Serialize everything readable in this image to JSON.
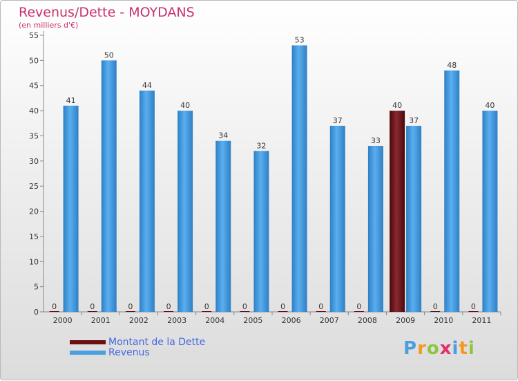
{
  "chart_data": {
    "type": "bar",
    "title": "Revenus/Dette - MOYDANS",
    "subtitle": "(en milliers d'€)",
    "categories": [
      "2000",
      "2001",
      "2002",
      "2003",
      "2004",
      "2005",
      "2006",
      "2007",
      "2008",
      "2009",
      "2010",
      "2011"
    ],
    "series": [
      {
        "name": "Montant de la Dette",
        "color": "#6b0d12",
        "values": [
          0,
          0,
          0,
          0,
          0,
          0,
          0,
          0,
          0,
          40,
          0,
          0
        ]
      },
      {
        "name": "Revenus",
        "color": "#4a9fe0",
        "values": [
          41,
          50,
          44,
          40,
          34,
          32,
          53,
          37,
          33,
          37,
          48,
          40
        ]
      }
    ],
    "ylim": [
      0,
      55
    ],
    "yticks": [
      0,
      5,
      10,
      15,
      20,
      25,
      30,
      35,
      40,
      45,
      50,
      55
    ],
    "grid": false,
    "legend": "bottom-left"
  },
  "logo": {
    "letters": [
      {
        "ch": "P",
        "color": "#4a9fe0"
      },
      {
        "ch": "r",
        "color": "#f29a1e"
      },
      {
        "ch": "o",
        "color": "#8cc63f"
      },
      {
        "ch": "x",
        "color": "#e2306c"
      },
      {
        "ch": "i",
        "color": "#4a9fe0"
      },
      {
        "ch": "t",
        "color": "#f29a1e"
      },
      {
        "ch": "i",
        "color": "#8cc63f"
      }
    ]
  }
}
